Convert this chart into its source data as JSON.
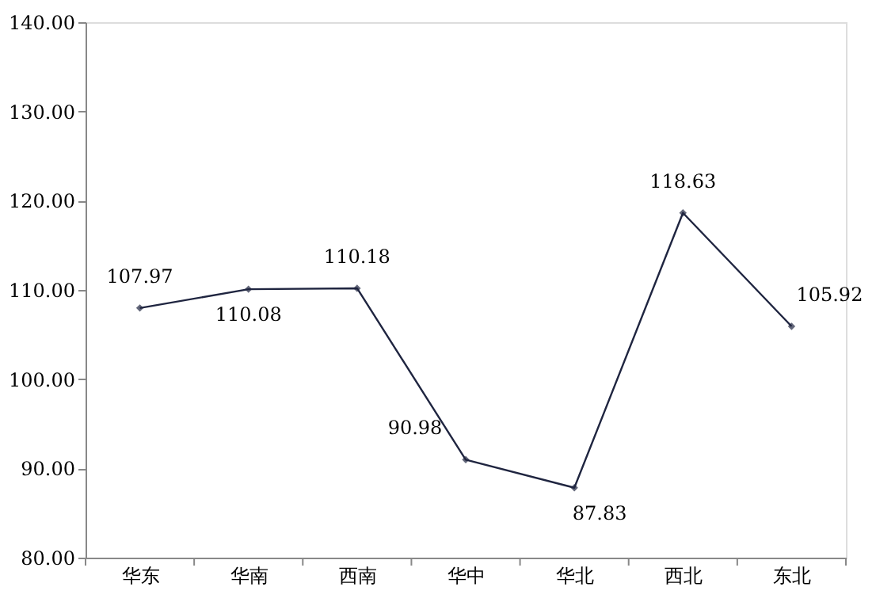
{
  "chart_data": {
    "type": "line",
    "categories": [
      "华东",
      "华南",
      "西南",
      "华中",
      "华北",
      "西北",
      "东北"
    ],
    "values": [
      107.97,
      110.08,
      110.18,
      90.98,
      87.83,
      118.63,
      105.92
    ],
    "color": "#1f2540",
    "marker": "diamond",
    "data_labels": true,
    "ylim": [
      80,
      140
    ],
    "yticks": [
      {
        "value": 80,
        "label": "80.00"
      },
      {
        "value": 90,
        "label": "90.00"
      },
      {
        "value": 100,
        "label": "100.00"
      },
      {
        "value": 110,
        "label": "110.00"
      },
      {
        "value": 120,
        "label": "120.00"
      },
      {
        "value": 130,
        "label": "130.00"
      },
      {
        "value": 140,
        "label": "140.00"
      }
    ],
    "grid": false
  }
}
